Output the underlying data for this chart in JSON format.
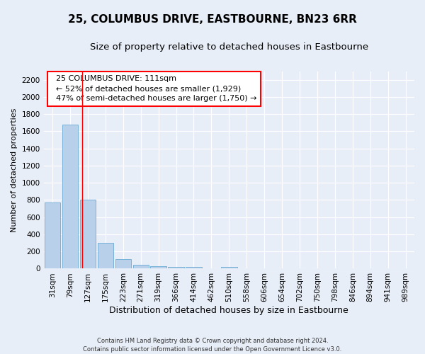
{
  "title": "25, COLUMBUS DRIVE, EASTBOURNE, BN23 6RR",
  "subtitle": "Size of property relative to detached houses in Eastbourne",
  "xlabel": "Distribution of detached houses by size in Eastbourne",
  "ylabel": "Number of detached properties",
  "footer": "Contains HM Land Registry data © Crown copyright and database right 2024.\nContains public sector information licensed under the Open Government Licence v3.0.",
  "bar_labels": [
    "31sqm",
    "79sqm",
    "127sqm",
    "175sqm",
    "223sqm",
    "271sqm",
    "319sqm",
    "366sqm",
    "414sqm",
    "462sqm",
    "510sqm",
    "558sqm",
    "606sqm",
    "654sqm",
    "702sqm",
    "750sqm",
    "798sqm",
    "846sqm",
    "894sqm",
    "941sqm",
    "989sqm"
  ],
  "bar_values": [
    770,
    1680,
    800,
    300,
    110,
    45,
    30,
    22,
    20,
    0,
    20,
    0,
    0,
    0,
    0,
    0,
    0,
    0,
    0,
    0,
    0
  ],
  "bar_color": "#b8d0ea",
  "bar_edge_color": "#6aaad4",
  "ylim": [
    0,
    2300
  ],
  "yticks": [
    0,
    200,
    400,
    600,
    800,
    1000,
    1200,
    1400,
    1600,
    1800,
    2000,
    2200
  ],
  "property_line_x": 1.67,
  "annotation_text": "  25 COLUMBUS DRIVE: 111sqm\n  ← 52% of detached houses are smaller (1,929)\n  47% of semi-detached houses are larger (1,750) →",
  "bg_color": "#e8eef8",
  "plot_bg_color": "#e8eef8",
  "grid_color": "#ffffff",
  "title_fontsize": 11,
  "subtitle_fontsize": 9.5,
  "xlabel_fontsize": 9,
  "ylabel_fontsize": 8,
  "tick_fontsize": 7.5,
  "annotation_fontsize": 8
}
